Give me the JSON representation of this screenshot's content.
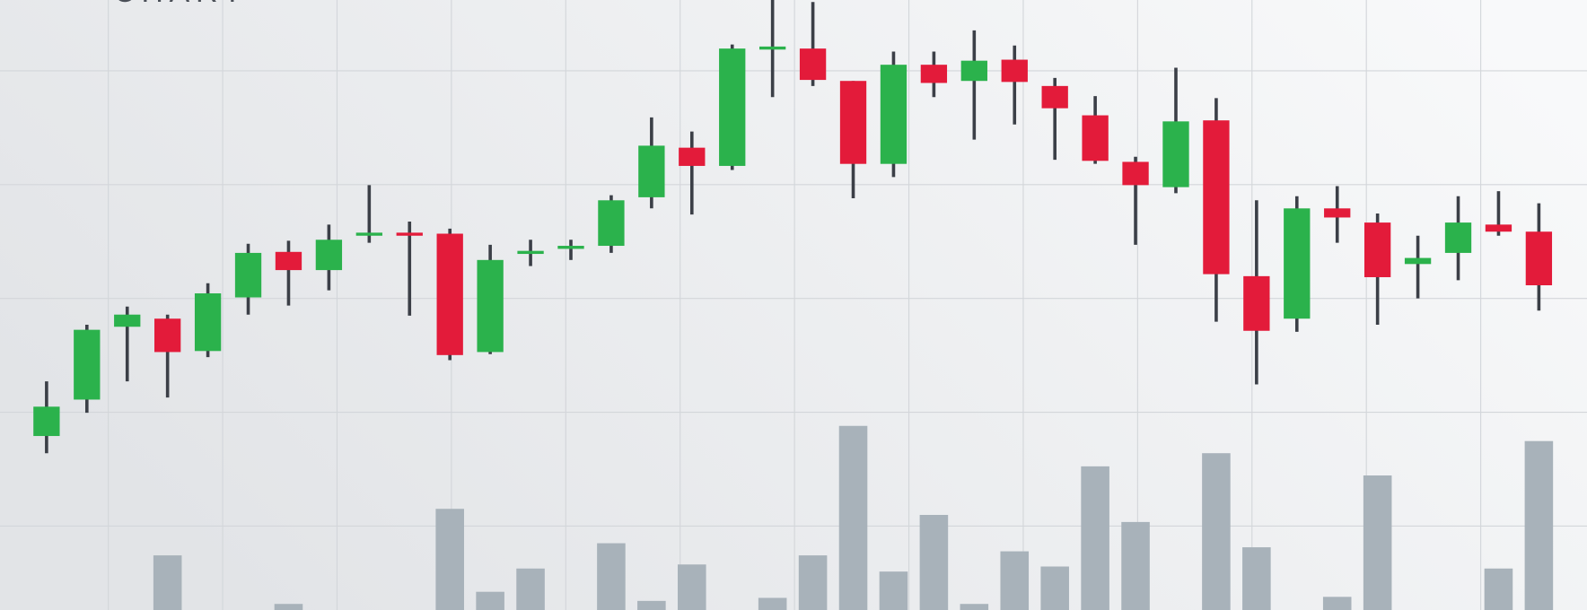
{
  "chart_data": {
    "type": "candlestick",
    "title": "CHART",
    "grid": true,
    "ylim": [
      0,
      603
    ],
    "up_color": "#2bb24c",
    "down_color": "#e31b3a",
    "wick_color": "#3b3f47",
    "volume_color": "#a8b2ba",
    "open": [
      172,
      208,
      280,
      288,
      256,
      309,
      354,
      336,
      370,
      373,
      372,
      255,
      352,
      357,
      360,
      408,
      457,
      439,
      554,
      555,
      523,
      441,
      539,
      523,
      544,
      518,
      489,
      443,
      418,
      484,
      330,
      288,
      397,
      383,
      342,
      353,
      381,
      374
    ],
    "close": [
      201,
      277,
      292,
      255,
      313,
      353,
      336,
      366,
      373,
      370,
      252,
      346,
      355,
      360,
      405,
      459,
      439,
      555,
      557,
      524,
      441,
      539,
      521,
      543,
      522,
      496,
      444,
      420,
      483,
      332,
      276,
      397,
      388,
      329,
      348,
      383,
      374,
      321
    ],
    "high": [
      226,
      282,
      300,
      292,
      323,
      362,
      365,
      381,
      420,
      384,
      377,
      361,
      366,
      366,
      410,
      487,
      473,
      559,
      603,
      601,
      523,
      552,
      552,
      573,
      558,
      526,
      508,
      448,
      536,
      506,
      405,
      409,
      419,
      392,
      370,
      409,
      414,
      402
    ],
    "low": [
      155,
      195,
      226,
      210,
      250,
      292,
      301,
      316,
      363,
      291,
      247,
      253,
      340,
      346,
      353,
      397,
      391,
      435,
      507,
      518,
      407,
      428,
      507,
      465,
      480,
      445,
      441,
      361,
      412,
      285,
      223,
      275,
      363,
      282,
      308,
      326,
      370,
      296
    ],
    "volume": [
      0,
      0,
      0,
      54,
      0,
      0,
      6,
      0,
      0,
      0,
      100,
      18,
      41,
      0,
      66,
      9,
      45,
      0,
      12,
      54,
      182,
      38,
      94,
      6,
      58,
      43,
      142,
      87,
      0,
      155,
      62,
      0,
      13,
      133,
      0,
      0,
      41,
      167
    ]
  }
}
